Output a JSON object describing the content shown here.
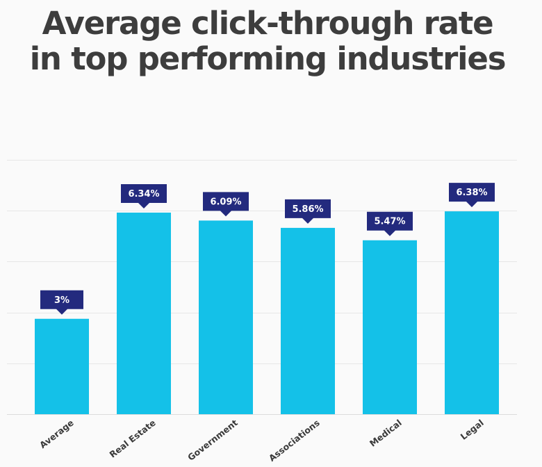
{
  "chart_data": {
    "type": "bar",
    "title": "Average click-through rate in top performing industries",
    "xlabel": "",
    "ylabel": "",
    "categories": [
      "Average",
      "Real Estate",
      "Government",
      "Associations",
      "Medical",
      "Legal"
    ],
    "values": [
      3,
      6.34,
      6.09,
      5.86,
      5.47,
      6.38
    ],
    "data_labels": [
      "3%",
      "6.34%",
      "6.09%",
      "5.86%",
      "5.47%",
      "6.38%"
    ],
    "ylim": [
      0,
      8
    ],
    "grid": true,
    "legend": "none",
    "colors": {
      "bar": "#14c1e8",
      "label_box": "#232a7e",
      "title": "#3d3d3d"
    }
  }
}
